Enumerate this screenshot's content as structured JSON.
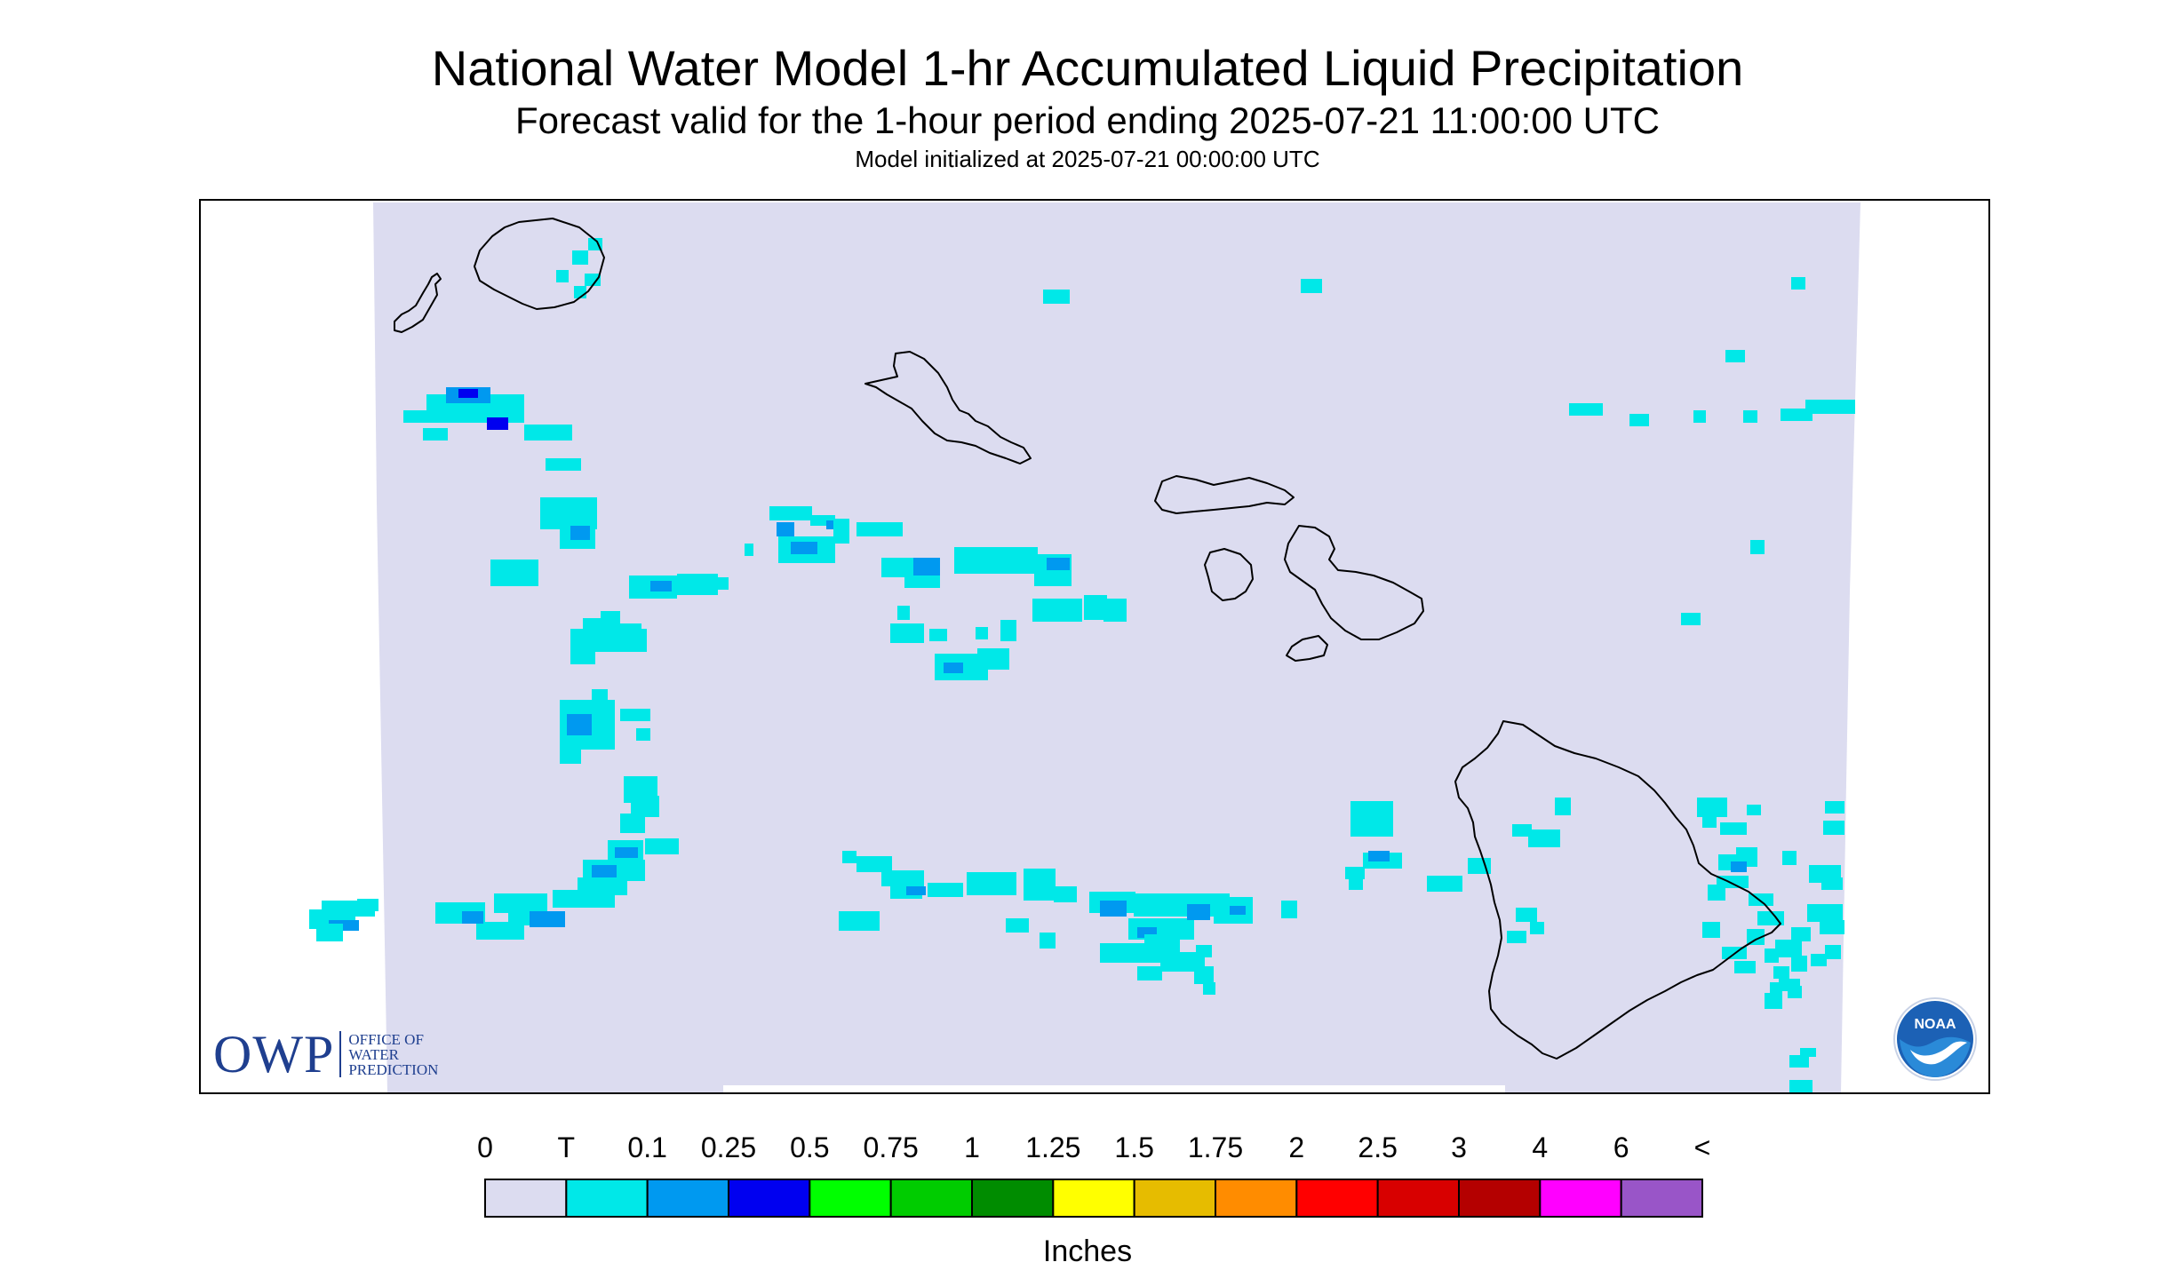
{
  "title": "National Water Model 1-hr Accumulated Liquid Precipitation",
  "subtitle": "Forecast valid for the 1-hour period ending 2025-07-21 11:00:00 UTC",
  "init_line": "Model initialized at 2025-07-21 00:00:00 UTC",
  "colors": {
    "no_data": "#ffffff",
    "domain_fill": "#dcdcf0",
    "coastline": "#000000",
    "owp_blue": "#1f3f8f",
    "noaa_blue": "#1c61b5"
  },
  "legend": {
    "title": "Inches",
    "labels": [
      "0",
      "T",
      "0.1",
      "0.25",
      "0.5",
      "0.75",
      "1",
      "1.25",
      "1.5",
      "1.75",
      "2",
      "2.5",
      "3",
      "4",
      "6",
      "<"
    ],
    "colors": [
      "#dcdcf0",
      "#00e8e8",
      "#0099f0",
      "#0000f0",
      "#00ff00",
      "#00cc00",
      "#008c00",
      "#ffff00",
      "#e6bc00",
      "#ff8c00",
      "#ff0000",
      "#d80000",
      "#b40000",
      "#ff00ff",
      "#9955c8"
    ]
  },
  "owp_logo": {
    "letters": "OWP",
    "line1": "OFFICE OF",
    "line2": "WATER",
    "line3": "PREDICTION"
  },
  "noaa_logo": {
    "text": "NOAA"
  },
  "map": {
    "region": "Hawaiian Islands",
    "islands": [
      "Niihau",
      "Kauai",
      "Oahu",
      "Molokai",
      "Lanai",
      "Maui",
      "Kahoolawe",
      "Hawaii"
    ]
  }
}
